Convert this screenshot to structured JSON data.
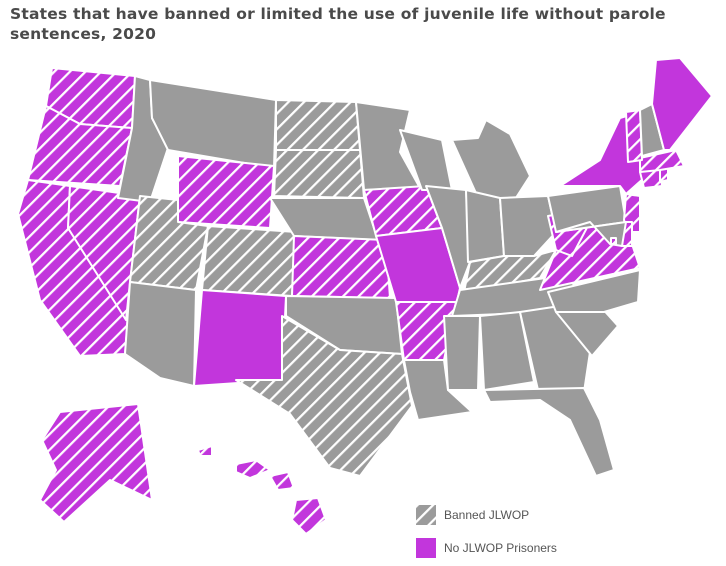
{
  "title": "States that have banned or limited the use of juvenile life without parole sentences, 2020",
  "colors": {
    "base_state": "#9b9b9b",
    "state_border": "#ffffff",
    "banned_fill": "#9b9b9b",
    "banned_hatch": "#ffffff",
    "no_prisoners": "#c236dc",
    "text": "#4a4a4a"
  },
  "legend": [
    {
      "key": "banned",
      "label": "Banned JLWOP",
      "style": "grey-hatched"
    },
    {
      "key": "no_prisoners",
      "label": "No JLWOP Prisoners",
      "style": "purple-solid"
    }
  ],
  "state_categories": {
    "banned_and_no_prisoners": [
      "WA",
      "OR",
      "CA",
      "NV",
      "WY",
      "IA",
      "KS",
      "AR",
      "WV",
      "VA",
      "AK",
      "HI",
      "VT",
      "MA",
      "CT",
      "RI",
      "NJ",
      "DE",
      "DC"
    ],
    "banned_only": [
      "ND",
      "SD",
      "UT",
      "CO",
      "TX",
      "KY"
    ],
    "no_prisoners_only": [
      "ME",
      "NY",
      "MO",
      "NM"
    ]
  }
}
